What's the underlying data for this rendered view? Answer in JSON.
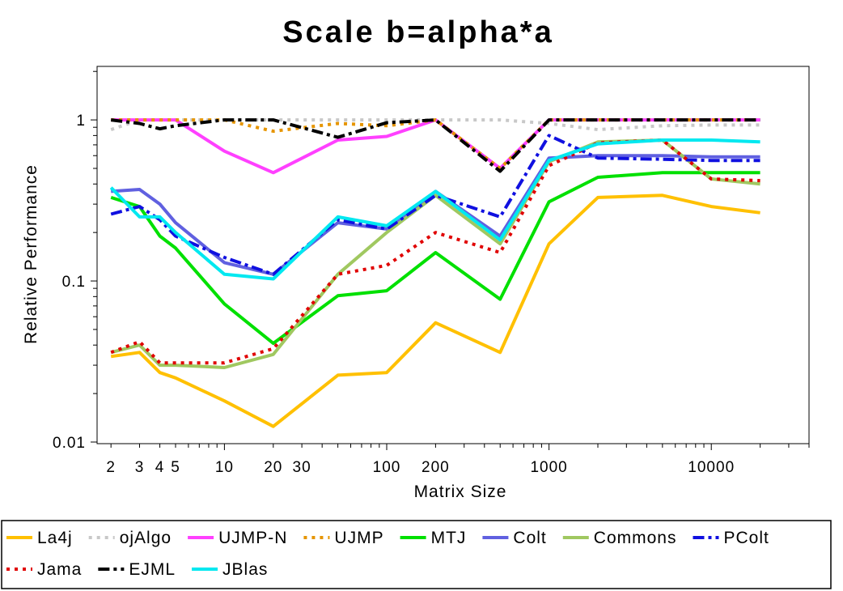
{
  "chart_data": {
    "type": "line",
    "title": "Scale b=alpha*a",
    "xlabel": "Matrix Size",
    "ylabel": "Relative Performance",
    "x_scale": "log",
    "y_scale": "log",
    "xlim": [
      1.8,
      40000
    ],
    "ylim": [
      0.01,
      2.1
    ],
    "x_tick_labels": [
      {
        "value": 2,
        "label": "2"
      },
      {
        "value": 3,
        "label": "3"
      },
      {
        "value": 4,
        "label": "4"
      },
      {
        "value": 5,
        "label": "5"
      },
      {
        "value": 10,
        "label": "10"
      },
      {
        "value": 20,
        "label": "20"
      },
      {
        "value": 30,
        "label": "30"
      },
      {
        "value": 100,
        "label": "100"
      },
      {
        "value": 200,
        "label": "200"
      },
      {
        "value": 1000,
        "label": "1000"
      },
      {
        "value": 10000,
        "label": "10000"
      }
    ],
    "y_tick_labels": [
      {
        "value": 0.01,
        "label": "0.01"
      },
      {
        "value": 0.1,
        "label": "0.1"
      },
      {
        "value": 1,
        "label": "1"
      }
    ],
    "grid": false,
    "legend_position": "bottom",
    "x": [
      2,
      3,
      4,
      5,
      10,
      20,
      50,
      100,
      200,
      500,
      1000,
      2000,
      5000,
      10000,
      20000
    ],
    "series": [
      {
        "name": "La4j",
        "color": "#FFC000",
        "dash": "solid",
        "values": [
          0.034,
          0.036,
          0.027,
          0.025,
          0.018,
          0.0125,
          0.026,
          0.027,
          0.055,
          0.036,
          0.17,
          0.33,
          0.34,
          0.29,
          0.265
        ]
      },
      {
        "name": "ojAlgo",
        "color": "#C8C8C8",
        "dash": "dot",
        "values": [
          0.87,
          1.0,
          1.0,
          1.0,
          1.0,
          1.0,
          1.0,
          1.0,
          1.0,
          1.0,
          0.95,
          0.87,
          0.92,
          0.93,
          0.93
        ]
      },
      {
        "name": "UJMP-N",
        "color": "#FF40FF",
        "dash": "solid",
        "values": [
          1.0,
          1.0,
          1.0,
          1.0,
          0.64,
          0.47,
          0.75,
          0.79,
          1.0,
          0.5,
          1.0,
          1.0,
          1.0,
          1.0,
          1.0
        ]
      },
      {
        "name": "UJMP",
        "color": "#E69500",
        "dash": "dot",
        "values": [
          1.0,
          1.0,
          1.0,
          1.0,
          1.0,
          0.85,
          0.95,
          0.92,
          1.0,
          0.5,
          1.0,
          1.0,
          1.0,
          1.0,
          1.0
        ]
      },
      {
        "name": "MTJ",
        "color": "#00E000",
        "dash": "solid",
        "values": [
          0.33,
          0.29,
          0.19,
          0.16,
          0.072,
          0.041,
          0.081,
          0.087,
          0.15,
          0.077,
          0.31,
          0.44,
          0.47,
          0.47,
          0.47
        ]
      },
      {
        "name": "Colt",
        "color": "#6060E0",
        "dash": "solid",
        "values": [
          0.36,
          0.37,
          0.3,
          0.23,
          0.13,
          0.11,
          0.23,
          0.21,
          0.36,
          0.19,
          0.58,
          0.6,
          0.6,
          0.59,
          0.59
        ]
      },
      {
        "name": "Commons",
        "color": "#A0C860",
        "dash": "solid",
        "values": [
          0.036,
          0.04,
          0.03,
          0.03,
          0.029,
          0.035,
          0.11,
          0.2,
          0.34,
          0.17,
          0.55,
          0.73,
          0.75,
          0.43,
          0.4
        ]
      },
      {
        "name": "PColt",
        "color": "#1010E0",
        "dash": "dashdot",
        "values": [
          0.26,
          0.29,
          0.24,
          0.19,
          0.14,
          0.11,
          0.24,
          0.21,
          0.34,
          0.25,
          0.8,
          0.58,
          0.57,
          0.56,
          0.56
        ]
      },
      {
        "name": "Jama",
        "color": "#E00000",
        "dash": "dot",
        "values": [
          0.036,
          0.042,
          0.031,
          0.031,
          0.031,
          0.038,
          0.11,
          0.125,
          0.2,
          0.15,
          0.52,
          0.72,
          0.75,
          0.43,
          0.42
        ]
      },
      {
        "name": "EJML",
        "color": "#000000",
        "dash": "dashdot",
        "values": [
          1.0,
          0.95,
          0.88,
          0.92,
          1.0,
          1.0,
          0.78,
          0.96,
          1.0,
          0.48,
          1.0,
          1.0,
          1.0,
          1.0,
          1.0
        ]
      },
      {
        "name": "JBlas",
        "color": "#00E8F0",
        "dash": "solid",
        "values": [
          0.38,
          0.25,
          0.25,
          0.2,
          0.11,
          0.103,
          0.25,
          0.22,
          0.36,
          0.18,
          0.56,
          0.71,
          0.75,
          0.75,
          0.73
        ]
      }
    ]
  }
}
